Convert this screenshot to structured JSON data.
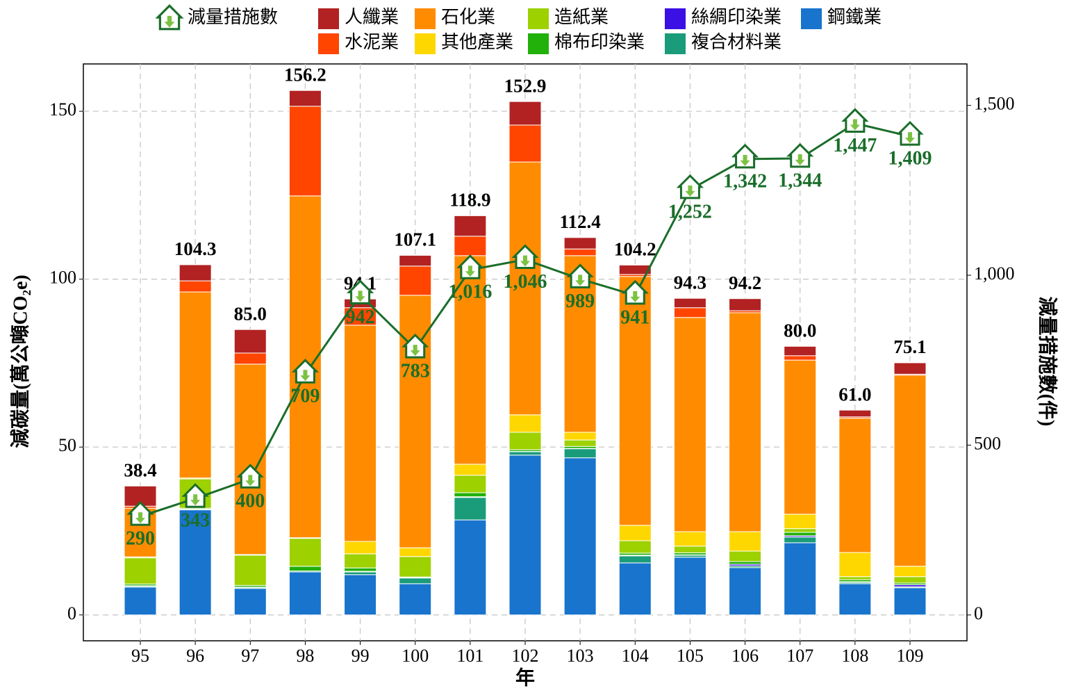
{
  "chart_data": {
    "type": "bar",
    "stacked": true,
    "categories": [
      "95",
      "96",
      "97",
      "98",
      "99",
      "100",
      "101",
      "102",
      "103",
      "104",
      "105",
      "106",
      "107",
      "108",
      "109"
    ],
    "xlabel": "年",
    "ylabel": "減碳量(萬公噸CO₂e)",
    "y2label": "減量措施數(件)",
    "ylim": [
      -7.7,
      164.1
    ],
    "yticks": [
      0,
      50,
      100,
      150
    ],
    "y2lim": [
      -76,
      1622
    ],
    "y2ticks": [
      0,
      500,
      {
        "value": 1000,
        "label": "1,000"
      },
      {
        "value": 1500,
        "label": "1,500"
      }
    ],
    "grid": true,
    "legend": "top",
    "series": [
      {
        "name": "減量措施數",
        "type": "line",
        "axis": "y2",
        "color": "#1a6e2a",
        "values": [
          290,
          343,
          400,
          709,
          942,
          783,
          1016,
          1046,
          989,
          941,
          1252,
          1342,
          1344,
          1447,
          1409
        ],
        "value_labels": [
          "290",
          "343",
          "400",
          "709",
          "942",
          "783",
          "1,016",
          "1,046",
          "989",
          "941",
          "1,252",
          "1,342",
          "1,344",
          "1,447",
          "1,409"
        ]
      },
      {
        "name": "人纖業",
        "color": "#b22222",
        "values": [
          6.0,
          4.8,
          7.0,
          4.7,
          2.6,
          3.2,
          6.1,
          7.0,
          3.4,
          2.8,
          2.8,
          3.6,
          2.8,
          2.0,
          3.4
        ]
      },
      {
        "name": "水泥業",
        "color": "#ff4500",
        "values": [
          0.6,
          3.3,
          3.3,
          26.7,
          5.2,
          8.7,
          5.8,
          11.0,
          2.0,
          0.6,
          2.9,
          0.6,
          1.3,
          0.4,
          0.3
        ]
      },
      {
        "name": "石化業",
        "color": "#ff8c00",
        "values": [
          14.5,
          55.4,
          56.7,
          101.8,
          64.4,
          75.2,
          62.1,
          75.3,
          52.6,
          74.1,
          63.8,
          65.2,
          45.9,
          40.0,
          56.9
        ]
      },
      {
        "name": "其他產業",
        "color": "#ffd700",
        "values": [
          0.3,
          0.3,
          0.2,
          0.2,
          3.7,
          2.6,
          3.3,
          5.2,
          2.3,
          4.6,
          4.3,
          5.8,
          4.3,
          7.2,
          3.1
        ]
      },
      {
        "name": "造紙業",
        "color": "#9dd100",
        "values": [
          7.8,
          8.7,
          9.0,
          8.3,
          4.2,
          6.1,
          5.2,
          5.2,
          1.9,
          3.7,
          2.0,
          3.1,
          1.1,
          0.9,
          1.9
        ]
      },
      {
        "name": "棉布印染業",
        "color": "#22b00a",
        "values": [
          0.5,
          0.3,
          0.5,
          1.4,
          1.0,
          0.2,
          1.2,
          0.5,
          0.6,
          0.6,
          0.6,
          0.8,
          1.0,
          0.6,
          0.5
        ]
      },
      {
        "name": "絲綢印染業",
        "color": "#3a10e5",
        "values": [
          0.1,
          0,
          0.1,
          0,
          0.2,
          0.1,
          0.2,
          0.1,
          0.1,
          0.2,
          0.1,
          0.5,
          0.4,
          0.2,
          0.6
        ]
      },
      {
        "name": "複合材料業",
        "color": "#1a9c7a",
        "values": [
          0.3,
          0.2,
          0.3,
          0.3,
          0.8,
          1.7,
          6.7,
          1.0,
          2.7,
          2.1,
          0.6,
          0.5,
          1.7,
          0.4,
          0.3
        ]
      },
      {
        "name": "鋼鐵業",
        "color": "#1874cd",
        "values": [
          8.3,
          31.3,
          7.9,
          12.8,
          12.0,
          9.3,
          28.3,
          47.6,
          46.8,
          15.5,
          17.2,
          14.1,
          21.5,
          9.3,
          8.1
        ]
      }
    ],
    "totals": {
      "values": [
        38.4,
        104.3,
        85.0,
        156.2,
        94.1,
        107.1,
        118.9,
        152.9,
        112.4,
        104.2,
        94.3,
        94.2,
        80.0,
        61.0,
        75.1
      ],
      "value_labels": [
        "38.4",
        "104.3",
        "85.0",
        "156.2",
        "94.1",
        "107.1",
        "118.9",
        "152.9",
        "112.4",
        "104.2",
        "94.3",
        "94.2",
        "80.0",
        "61.0",
        "75.1"
      ]
    }
  }
}
